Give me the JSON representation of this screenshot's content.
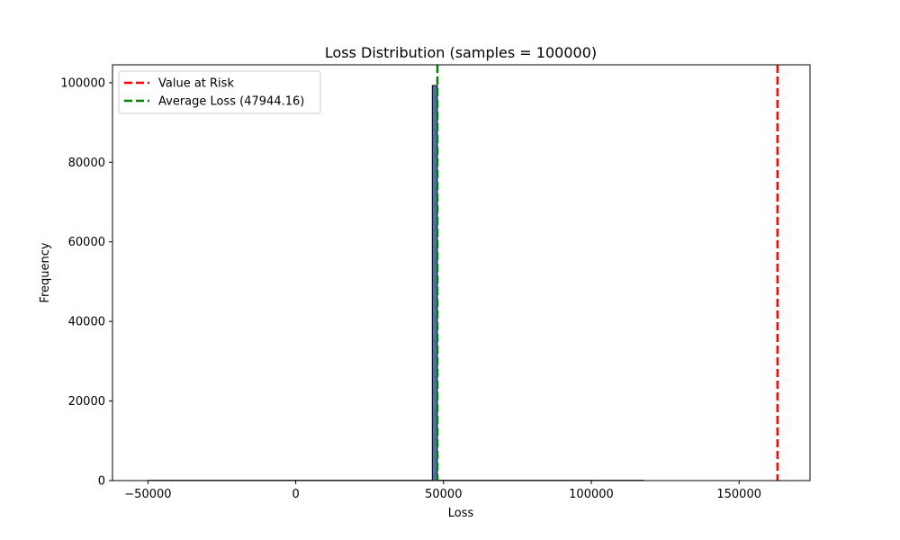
{
  "chart_data": {
    "type": "bar",
    "title": "Loss Distribution (samples = 100000)",
    "xlabel": "Loss",
    "ylabel": "Frequency",
    "xlim": [
      -62000,
      174000
    ],
    "ylim": [
      0,
      104500
    ],
    "x_ticks": [
      -50000,
      0,
      50000,
      100000,
      150000
    ],
    "x_tick_labels": [
      "−50000",
      "0",
      "50000",
      "100000",
      "150000"
    ],
    "y_ticks": [
      0,
      20000,
      40000,
      60000,
      80000,
      100000
    ],
    "y_tick_labels": [
      "0",
      "20000",
      "40000",
      "60000",
      "80000",
      "100000"
    ],
    "bars": [
      {
        "x0": 46200,
        "x1": 47900,
        "value": 99300
      }
    ],
    "tail_range": [
      -50000,
      118000
    ],
    "bar_color": "#4c72b0",
    "bar_edge_color": "#000000",
    "vlines": [
      {
        "name": "Value at Risk",
        "x": 163000,
        "color": "#ff0000"
      },
      {
        "name": "Average Loss (47944.16)",
        "x": 47944.16,
        "color": "#008000"
      }
    ],
    "legend_position": "upper-left",
    "grid": false
  }
}
